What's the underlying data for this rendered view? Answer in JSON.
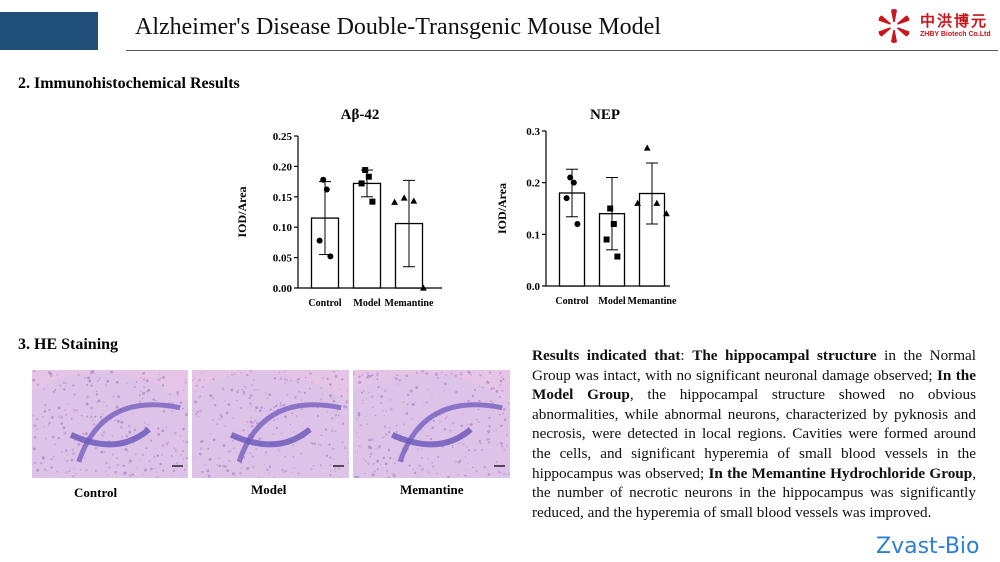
{
  "header": {
    "title": "Alzheimer's Disease Double-Transgenic Mouse Model",
    "accent_color": "#1f4e79",
    "logo": {
      "cn": "中洪博元",
      "en": "ZHBY Biotech Co.Ltd",
      "color": "#c8161d"
    }
  },
  "sections": {
    "ihc": "2. Immunohistochemical Results",
    "he": "3. HE Staining"
  },
  "chart_data": [
    {
      "type": "bar",
      "title": "Aβ-42",
      "ylabel": "IOD/Area",
      "categories": [
        "Control",
        "Model",
        "Memantine"
      ],
      "ylim": [
        0,
        0.25
      ],
      "yticks": [
        "0.00",
        "0.05",
        "0.10",
        "0.15",
        "0.20",
        "0.25"
      ],
      "values": [
        0.115,
        0.172,
        0.106
      ],
      "error": [
        0.06,
        0.022,
        0.071
      ],
      "points": [
        [
          0.178,
          0.162,
          0.078,
          0.052
        ],
        [
          0.194,
          0.183,
          0.172,
          0.142
        ],
        [
          0.148,
          0.143,
          0.141,
          0.0
        ]
      ],
      "markers": [
        "circle",
        "square",
        "triangle"
      ],
      "grid": false,
      "legend": "none"
    },
    {
      "type": "bar",
      "title": "NEP",
      "ylabel": "IOD/Area",
      "categories": [
        "Control",
        "Model",
        "Memantine"
      ],
      "ylim": [
        0,
        0.3
      ],
      "yticks": [
        "0.0",
        "0.1",
        "0.2",
        "0.3"
      ],
      "values": [
        0.18,
        0.14,
        0.179
      ],
      "error": [
        0.046,
        0.07,
        0.059
      ],
      "points": [
        [
          0.21,
          0.2,
          0.17,
          0.12
        ],
        [
          0.15,
          0.12,
          0.09,
          0.057
        ],
        [
          0.267,
          0.16,
          0.16,
          0.14
        ]
      ],
      "markers": [
        "circle",
        "square",
        "triangle"
      ],
      "grid": false,
      "legend": "none"
    }
  ],
  "he_images": [
    {
      "label": "Control"
    },
    {
      "label": "Model"
    },
    {
      "label": "Memantine"
    }
  ],
  "results_text": {
    "p1_bold": "Results indicated that",
    "p1_rest": ": ",
    "p2_bold": "The hippocampal structure",
    "p2_rest": " in the Normal Group was intact, with no significant neuronal damage observed; ",
    "p3_bold": "In the Model Group",
    "p3_rest": ", the hippocampal structure showed no obvious abnormalities, while abnormal neurons, characterized by pyknosis and necrosis, were detected in local regions. Cavities were formed around the cells, and significant hyperemia of small blood vessels in the hippocampus was observed; ",
    "p4_bold": "In the Memantine Hydrochloride Group",
    "p4_rest": ", the number of necrotic neurons in the hippocampus was significantly reduced, and the hyperemia of small blood vessels was improved."
  },
  "watermark": "Zvast-Bio"
}
